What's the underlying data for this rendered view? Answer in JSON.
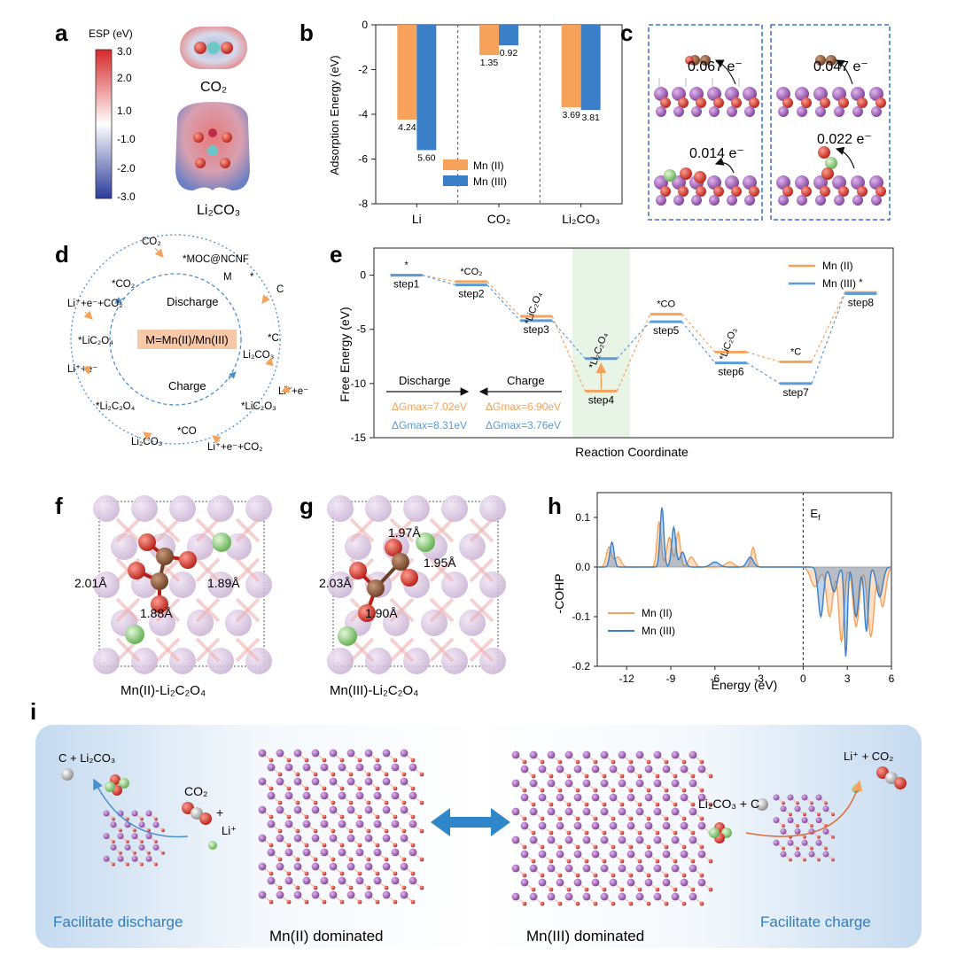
{
  "panel_labels": [
    "a",
    "b",
    "c",
    "d",
    "e",
    "f",
    "g",
    "h",
    "i"
  ],
  "panel_a": {
    "colorbar_title": "ESP (eV)",
    "colorbar_ticks": [
      "3.0",
      "2.0",
      "1.0",
      "-1.0",
      "-2.0",
      "-3.0"
    ],
    "molecule_top": "CO₂",
    "molecule_bottom": "Li₂CO₃",
    "colors": {
      "positive": "#d62728",
      "neutral": "#ffffff",
      "negative": "#2a3a9a"
    }
  },
  "panel_b_chart": {
    "type": "bar",
    "categories": [
      "Li",
      "CO₂",
      "Li₂CO₃"
    ],
    "series": [
      {
        "name": "Mn (II)",
        "color": "#f6a25a",
        "values": [
          -4.24,
          -1.35,
          -3.69
        ],
        "labels": [
          "4.24",
          "1.35",
          "3.69"
        ]
      },
      {
        "name": "Mn (III)",
        "color": "#3a7fc7",
        "values": [
          -5.6,
          -0.92,
          -3.81
        ],
        "labels": [
          "5.60",
          "0.92",
          "3.81"
        ]
      }
    ],
    "ylabel": "Adsorption Energy (eV)",
    "ylim": [
      -8,
      0
    ],
    "yticks": [
      "0",
      "-2",
      "-4",
      "-6",
      "-8"
    ]
  },
  "panel_c": {
    "charges": [
      "0.067 e⁻",
      "0.047 e⁻",
      "0.014 e⁻",
      "0.022 e⁻"
    ],
    "colors": {
      "purple": "#9a5fb0",
      "red": "#d23b2e",
      "green": "#9bd38a",
      "brown": "#8d5a3c"
    }
  },
  "panel_d": {
    "center_label": "M=Mn(II)/Mn(III)",
    "discharge": "Discharge",
    "charge": "Charge",
    "labels": {
      "co2_top": "CO₂",
      "moc": "*MOC@NCNF",
      "m": "M",
      "star": "*",
      "c": "C",
      "c_star": "*C",
      "li2co3_right": "Li₂CO₃",
      "lie_right": "Li⁺+e⁻",
      "lic2o3_right": "*LiC₂O₃",
      "lie_co2_bottom": "Li⁺+e⁻+CO₂",
      "co_star": "*CO",
      "li2co3_bottom": "Li₂CO₃",
      "li2c2o4_left": "*Li₂C₂O₄",
      "lie_left": "Li⁺+e⁻",
      "lic2o4_left": "*LiC₂O₄",
      "lie_co2_left": "Li⁺+e⁻+CO₂",
      "co2_star": "*CO₂"
    }
  },
  "panel_e_chart": {
    "type": "line",
    "ylabel": "Free Energy (eV)",
    "xlabel": "Reaction Coordinate",
    "ylim": [
      -15,
      2.5
    ],
    "yticks": [
      "0",
      "-5",
      "-10",
      "-15"
    ],
    "steps": [
      "step1",
      "step2",
      "step3",
      "step4",
      "step5",
      "step6",
      "step7",
      "step8"
    ],
    "species": [
      "*",
      "*CO₂",
      "*LiC₂O₄",
      "*Li₂C₂O₄",
      "*CO",
      "*LiC₂O₃",
      "*C",
      "*"
    ],
    "series": [
      {
        "name": "Mn (II)",
        "color": "#f6a25a",
        "values": [
          0,
          -0.6,
          -3.8,
          -10.7,
          -3.6,
          -7.1,
          -8.0,
          -1.6
        ]
      },
      {
        "name": "Mn (III)",
        "color": "#5b9bd8",
        "values": [
          0,
          -0.9,
          -4.2,
          -7.7,
          -4.3,
          -8.1,
          -10.0,
          -1.7
        ]
      }
    ],
    "discharge_label": "Discharge",
    "charge_label": "Charge",
    "dg_discharge": [
      "ΔGmax=7.02eV",
      "ΔGmax=8.31eV"
    ],
    "dg_charge": [
      "ΔGmax=6.90eV",
      "ΔGmax=3.76eV"
    ]
  },
  "panel_f": {
    "caption": "Mn(II)-Li₂C₂O₄",
    "bonds": [
      "2.01Å",
      "1.89Å",
      "1.88Å"
    ]
  },
  "panel_g": {
    "caption": "Mn(III)-Li₂C₂O₄",
    "bonds": [
      "1.97Å",
      "1.95Å",
      "2.03Å",
      "1.90Å"
    ]
  },
  "panel_h_chart": {
    "type": "area",
    "ylabel": "-COHP",
    "xlabel": "Energy (eV)",
    "xlim": [
      -14,
      6
    ],
    "ylim": [
      -0.2,
      0.15
    ],
    "xticks": [
      "-12",
      "-9",
      "-6",
      "-3",
      "0",
      "3",
      "6"
    ],
    "yticks": [
      "0.1",
      "0.0",
      "-0.1",
      "-0.2"
    ],
    "fermi_label": "Ef",
    "series": [
      {
        "name": "Mn (II)",
        "color": "#f6a25a"
      },
      {
        "name": "Mn (III)",
        "color": "#3a7fc7"
      }
    ]
  },
  "panel_i": {
    "left_caption": "Facilitate discharge",
    "mid_left_caption": "Mn(II) dominated",
    "mid_right_caption": "Mn(III) dominated",
    "right_caption": "Facilitate charge",
    "left_products": "C + Li₂CO₃",
    "left_reactants_co2": "CO₂",
    "left_reactants_plus": "+",
    "left_reactants_li": "Li⁺",
    "right_reactants": "Li₂CO₃ + C",
    "right_products": "Li⁺ + CO₂",
    "colors": {
      "bg": "#cfe0f1",
      "arrow": "#2f86c8",
      "caption_blue": "#2f7fc0"
    }
  }
}
